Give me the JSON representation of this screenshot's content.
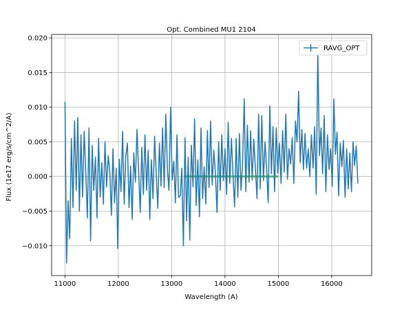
{
  "chart_data": {
    "type": "line",
    "title": "Opt. Combined MU1 2104",
    "xlabel": "Wavelength (A)",
    "ylabel": "Flux (1e17 erg/s/cm^2/A)",
    "xlim": [
      10750,
      16750
    ],
    "ylim": [
      -0.0143,
      0.0205
    ],
    "xticks": [
      11000,
      12000,
      13000,
      14000,
      15000,
      16000
    ],
    "xtick_labels": [
      "11000",
      "12000",
      "13000",
      "14000",
      "15000",
      "16000"
    ],
    "yticks": [
      -0.01,
      -0.005,
      0.0,
      0.005,
      0.01,
      0.015,
      0.02
    ],
    "ytick_labels": [
      "−0.010",
      "−0.005",
      "0.000",
      "0.005",
      "0.010",
      "0.015",
      "0.020"
    ],
    "grid": true,
    "legend_position": "upper right",
    "colors": {
      "series": "#1f77b4",
      "band": "#2ca02c",
      "grid": "#b0b0b0"
    },
    "series": [
      {
        "name": "RAVG_OPT",
        "color": "#1f77b4",
        "x": [
          11000,
          11030,
          11060,
          11090,
          11120,
          11150,
          11180,
          11210,
          11240,
          11270,
          11300,
          11330,
          11360,
          11390,
          11420,
          11450,
          11480,
          11510,
          11540,
          11570,
          11600,
          11630,
          11660,
          11690,
          11720,
          11750,
          11780,
          11810,
          11840,
          11870,
          11900,
          11930,
          11960,
          11990,
          12020,
          12050,
          12080,
          12110,
          12140,
          12170,
          12200,
          12230,
          12260,
          12290,
          12320,
          12350,
          12380,
          12410,
          12440,
          12470,
          12500,
          12530,
          12560,
          12590,
          12620,
          12650,
          12680,
          12710,
          12740,
          12770,
          12800,
          12830,
          12860,
          12890,
          12920,
          12950,
          12980,
          13010,
          13040,
          13070,
          13100,
          13130,
          13160,
          13190,
          13220,
          13250,
          13280,
          13310,
          13340,
          13370,
          13400,
          13430,
          13460,
          13490,
          13520,
          13550,
          13580,
          13610,
          13640,
          13670,
          13700,
          13730,
          13760,
          13790,
          13820,
          13850,
          13880,
          13910,
          13940,
          13970,
          14000,
          14030,
          14060,
          14090,
          14120,
          14150,
          14180,
          14210,
          14240,
          14270,
          14300,
          14330,
          14360,
          14390,
          14420,
          14450,
          14480,
          14510,
          14540,
          14570,
          14600,
          14630,
          14660,
          14690,
          14720,
          14750,
          14780,
          14810,
          14840,
          14870,
          14900,
          14930,
          14960,
          14990,
          15020,
          15050,
          15080,
          15110,
          15140,
          15170,
          15200,
          15230,
          15260,
          15290,
          15320,
          15350,
          15380,
          15410,
          15440,
          15470,
          15500,
          15530,
          15560,
          15590,
          15620,
          15650,
          15680,
          15710,
          15740,
          15770,
          15800,
          15830,
          15860,
          15890,
          15920,
          15950,
          15980,
          16010,
          16040,
          16070,
          16100,
          16130,
          16160,
          16190,
          16220,
          16250,
          16280,
          16310,
          16340,
          16370,
          16400,
          16430,
          16460,
          16490
        ],
        "y": [
          0.0108,
          -0.0125,
          -0.0035,
          -0.009,
          0.0055,
          -0.0045,
          0.008,
          -0.002,
          0.0085,
          -0.005,
          0.006,
          -0.003,
          0.0065,
          0.0005,
          -0.006,
          0.007,
          -0.0093,
          0.0045,
          -0.002,
          0.0028,
          -0.006,
          0.0055,
          -0.003,
          0.002,
          -0.004,
          0.005,
          -0.0015,
          0.003,
          0.0006,
          -0.0056,
          0.004,
          -0.0038,
          0.0012,
          -0.0104,
          0.0025,
          -0.0022,
          0.0065,
          -0.004,
          0.003,
          0.0048,
          -0.0045,
          0.0015,
          -0.0062,
          0.0034,
          -0.0008,
          0.0068,
          0.001,
          -0.0052,
          0.0042,
          -0.0026,
          0.006,
          -0.002,
          0.0038,
          -0.0062,
          0.0024,
          -0.0032,
          0.0058,
          0.0004,
          -0.0046,
          0.0048,
          -0.0014,
          0.007,
          -0.0016,
          0.009,
          0.001,
          -0.002,
          0.01,
          -0.0005,
          0.0022,
          -0.0038,
          0.006,
          -0.003,
          -0.0028,
          0.0012,
          -0.01,
          0.0056,
          -0.0064,
          0.0028,
          -0.0092,
          0.0045,
          -0.0015,
          0.0083,
          -0.0042,
          0.0024,
          -0.0058,
          0.007,
          -0.0032,
          0.0014,
          -0.004,
          0.0066,
          -0.0016,
          0.008,
          -0.0012,
          0.0038,
          0.0005,
          -0.0052,
          0.005,
          -0.002,
          0.006,
          -0.0006,
          0.004,
          -0.0026,
          0.0078,
          -0.001,
          0.0055,
          0.0002,
          -0.0044,
          0.0055,
          -0.003,
          0.0062,
          -0.002,
          0.0018,
          0.0112,
          -0.0022,
          0.0074,
          -0.0008,
          0.0066,
          -0.0005,
          0.0054,
          0.001,
          -0.0032,
          0.009,
          -0.0018,
          0.0088,
          -0.0006,
          0.005,
          0.0012,
          -0.0038,
          0.0102,
          0.0004,
          0.0072,
          -0.0022,
          0.007,
          0.0005,
          0.0048,
          -0.001,
          0.0066,
          0.0006,
          0.009,
          -0.0004,
          0.004,
          0.0018,
          0.0056,
          -0.001,
          0.008,
          0.005,
          0.0123,
          0.002,
          0.0068,
          0.001,
          0.0062,
          0.0012,
          0.004,
          0.0,
          0.006,
          0.0012,
          0.0072,
          -0.0026,
          0.018,
          0.003,
          0.007,
          0.0004,
          0.0088,
          -0.0022,
          0.006,
          0.001,
          0.004,
          -0.0014,
          0.0112,
          0.0032,
          0.0064,
          -0.0028,
          0.0048,
          0.0014,
          0.0052,
          -0.003,
          0.004,
          -0.0018,
          0.0034,
          -0.0022,
          0.005,
          0.0016,
          0.0044,
          -0.001
        ]
      }
    ],
    "band": {
      "x": [
        13230,
        15000
      ],
      "y": 0.0
    }
  }
}
